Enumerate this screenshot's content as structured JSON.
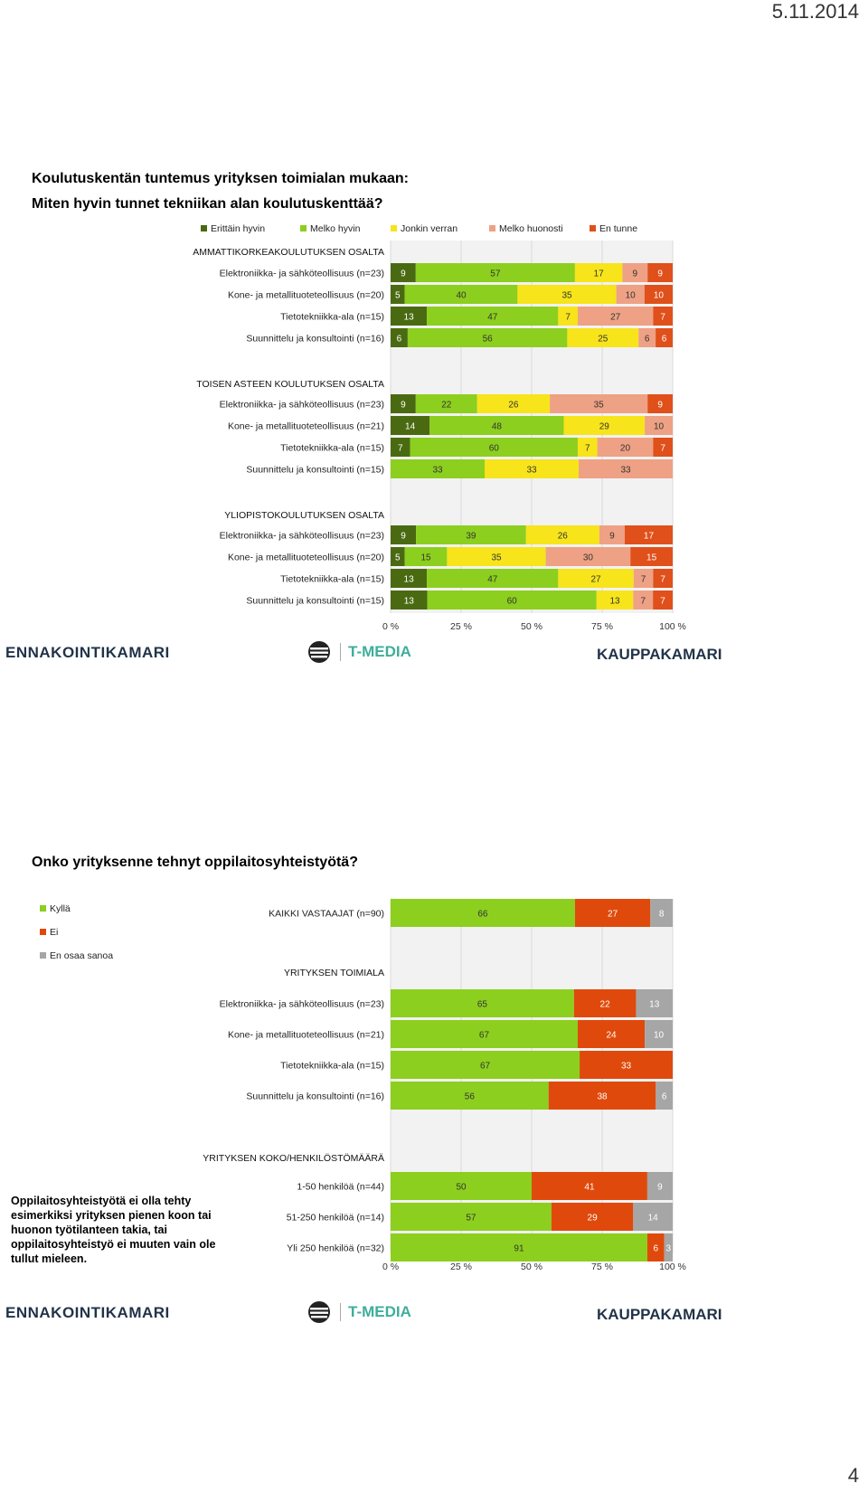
{
  "header": {
    "date": "5.11.2014"
  },
  "page_number": "4",
  "slide1": {
    "title_line1": "Koulutuskentän tuntemus yrityksen toimialan mukaan:",
    "title_line2": "Miten hyvin tunnet tekniikan alan koulutuskenttää?"
  },
  "slide2": {
    "title": "Onko yrityksenne tehnyt oppilaitosyhteistyötä?",
    "note": "Oppilaitosyhteistyötä ei olla tehty esimerkiksi yrityksen pienen koon tai huonon työtilanteen takia, tai oppilaitosyhteistyö ei muuten vain ole tullut mieleen."
  },
  "logos": {
    "ennakointikamari": "ENNAKOINTIKAMARI",
    "tmedia": "T-MEDIA",
    "kauppakamari": "KAUPPAKAMARI"
  },
  "chart_data": [
    {
      "type": "bar",
      "orientation": "horizontal",
      "stacked": "100%",
      "legend_position": "top",
      "xlim": [
        0,
        100
      ],
      "x_ticks": [
        "0 %",
        "25 %",
        "50 %",
        "75 %",
        "100 %"
      ],
      "series": [
        {
          "name": "Erittäin hyvin",
          "color": "#4a6a12"
        },
        {
          "name": "Melko hyvin",
          "color": "#8ccf1e"
        },
        {
          "name": "Jonkin verran",
          "color": "#f7e41b"
        },
        {
          "name": "Melko huonosti",
          "color": "#eea184"
        },
        {
          "name": "En tunne",
          "color": "#e0501a"
        }
      ],
      "groups": [
        {
          "title": "AMMATTIKORKEAKOULUTUKSEN OSALTA",
          "rows": [
            {
              "label": "Elektroniikka- ja sähköteollisuus (n=23)",
              "values": [
                9,
                57,
                17,
                9,
                9
              ]
            },
            {
              "label": "Kone- ja metallituoteteollisuus (n=20)",
              "values": [
                5,
                40,
                35,
                10,
                10
              ]
            },
            {
              "label": "Tietotekniikka-ala (n=15)",
              "values": [
                13,
                47,
                7,
                27,
                7
              ]
            },
            {
              "label": "Suunnittelu ja konsultointi (n=16)",
              "values": [
                6,
                56,
                25,
                6,
                6
              ]
            }
          ]
        },
        {
          "title": "TOISEN ASTEEN KOULUTUKSEN OSALTA",
          "rows": [
            {
              "label": "Elektroniikka- ja sähköteollisuus (n=23)",
              "values": [
                9,
                22,
                26,
                35,
                9
              ]
            },
            {
              "label": "Kone- ja metallituoteteollisuus (n=21)",
              "values": [
                14,
                48,
                29,
                10,
                0
              ]
            },
            {
              "label": "Tietotekniikka-ala (n=15)",
              "values": [
                7,
                60,
                7,
                20,
                7
              ]
            },
            {
              "label": "Suunnittelu ja konsultointi (n=15)",
              "values": [
                0,
                33,
                33,
                33,
                0
              ]
            }
          ]
        },
        {
          "title": "YLIOPISTOKOULUTUKSEN OSALTA",
          "rows": [
            {
              "label": "Elektroniikka- ja sähköteollisuus (n=23)",
              "values": [
                9,
                39,
                26,
                9,
                17
              ]
            },
            {
              "label": "Kone- ja metallituoteteollisuus (n=20)",
              "values": [
                5,
                15,
                35,
                30,
                15
              ]
            },
            {
              "label": "Tietotekniikka-ala (n=15)",
              "values": [
                13,
                47,
                27,
                7,
                7
              ]
            },
            {
              "label": "Suunnittelu ja konsultointi (n=15)",
              "values": [
                13,
                60,
                13,
                7,
                7
              ]
            }
          ]
        }
      ]
    },
    {
      "type": "bar",
      "orientation": "horizontal",
      "stacked": "100%",
      "legend_position": "top-left",
      "xlim": [
        0,
        100
      ],
      "x_ticks": [
        "0 %",
        "25 %",
        "50 %",
        "75 %",
        "100 %"
      ],
      "series": [
        {
          "name": "Kyllä",
          "color": "#8ccf1e"
        },
        {
          "name": "Ei",
          "color": "#df4a0c"
        },
        {
          "name": "En osaa sanoa",
          "color": "#a6a6a6"
        }
      ],
      "groups": [
        {
          "title": "",
          "rows": [
            {
              "label": "KAIKKI VASTAAJAT (n=90)",
              "values": [
                66,
                27,
                8
              ]
            }
          ]
        },
        {
          "title": "YRITYKSEN TOIMIALA",
          "rows": [
            {
              "label": "Elektroniikka- ja sähköteollisuus (n=23)",
              "values": [
                65,
                22,
                13
              ]
            },
            {
              "label": "Kone- ja metallituoteteollisuus (n=21)",
              "values": [
                67,
                24,
                10
              ]
            },
            {
              "label": "Tietotekniikka-ala (n=15)",
              "values": [
                67,
                33,
                0
              ]
            },
            {
              "label": "Suunnittelu ja konsultointi (n=16)",
              "values": [
                56,
                38,
                6
              ]
            }
          ]
        },
        {
          "title": "YRITYKSEN KOKO/HENKILÖSTÖMÄÄRÄ",
          "rows": [
            {
              "label": "1-50 henkilöä (n=44)",
              "values": [
                50,
                41,
                9
              ]
            },
            {
              "label": "51-250 henkilöä (n=14)",
              "values": [
                57,
                29,
                14
              ]
            },
            {
              "label": "Yli 250 henkilöä (n=32)",
              "values": [
                91,
                6,
                3
              ]
            }
          ]
        }
      ]
    }
  ]
}
